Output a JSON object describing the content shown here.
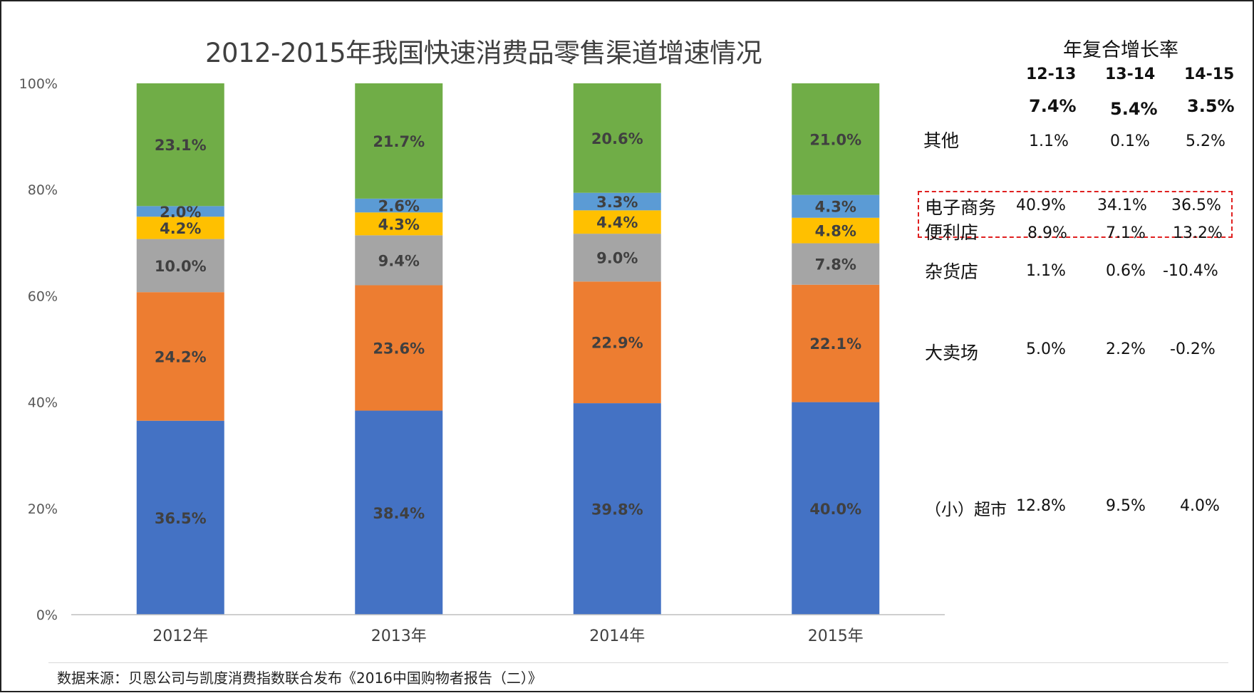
{
  "chart_data": {
    "type": "bar",
    "stacked": true,
    "title": "2012-2015年我国快速消费品零售渠道增速情况",
    "categories": [
      "2012年",
      "2013年",
      "2014年",
      "2015年"
    ],
    "ylim": [
      0,
      100
    ],
    "y_ticks": [
      "0%",
      "20%",
      "40%",
      "60%",
      "80%",
      "100%"
    ],
    "series": [
      {
        "name": "（小）超市",
        "color": "#4472C4",
        "values": [
          36.5,
          38.4,
          39.8,
          40.0
        ],
        "labels": [
          "36.5%",
          "38.4%",
          "39.8%",
          "40.0%"
        ]
      },
      {
        "name": "大卖场",
        "color": "#ED7D31",
        "values": [
          24.2,
          23.6,
          22.9,
          22.1
        ],
        "labels": [
          "24.2%",
          "23.6%",
          "22.9%",
          "22.1%"
        ]
      },
      {
        "name": "杂货店",
        "color": "#A5A5A5",
        "values": [
          10.0,
          9.4,
          9.0,
          7.8
        ],
        "labels": [
          "10.0%",
          "9.4%",
          "9.0%",
          "7.8%"
        ]
      },
      {
        "name": "便利店",
        "color": "#FFC000",
        "values": [
          4.2,
          4.3,
          4.4,
          4.8
        ],
        "labels": [
          "4.2%",
          "4.3%",
          "4.4%",
          "4.8%"
        ]
      },
      {
        "name": "电子商务",
        "color": "#5B9BD5",
        "values": [
          2.0,
          2.6,
          3.3,
          4.3
        ],
        "labels": [
          "2.0%",
          "2.6%",
          "3.3%",
          "4.3%"
        ]
      },
      {
        "name": "其他",
        "color": "#70AD47",
        "values": [
          23.1,
          21.7,
          20.6,
          21.0
        ],
        "labels": [
          "23.1%",
          "21.7%",
          "20.6%",
          "21.0%"
        ]
      }
    ],
    "source": "数据来源：贝恩公司与凯度消费指数联合发布《2016中国购物者报告（二）》"
  },
  "cagr": {
    "title": "年复合增长率",
    "periods": [
      "12-13",
      "13-14",
      "14-15"
    ],
    "overall": [
      "7.4%",
      "5.4%",
      "3.5%"
    ],
    "rows": [
      {
        "label": "其他",
        "values": [
          "1.1%",
          "0.1%",
          "5.2%"
        ]
      },
      {
        "label": "电子商务",
        "values": [
          "40.9%",
          "34.1%",
          "36.5%"
        ]
      },
      {
        "label": "便利店",
        "values": [
          "8.9%",
          "7.1%",
          "13.2%"
        ]
      },
      {
        "label": "杂货店",
        "values": [
          "1.1%",
          "0.6%",
          "-10.4%"
        ]
      },
      {
        "label": "大卖场",
        "values": [
          "5.0%",
          "2.2%",
          "-0.2%"
        ]
      },
      {
        "label": "（小）超市",
        "values": [
          "12.8%",
          "9.5%",
          "4.0%"
        ]
      }
    ],
    "highlight_color": "#E02020"
  }
}
